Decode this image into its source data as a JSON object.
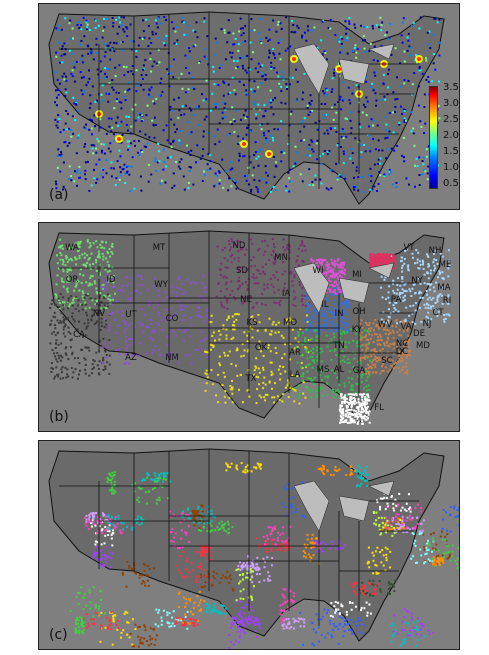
{
  "panels": {
    "a": {
      "label": "(a)"
    },
    "b": {
      "label": "(b)"
    },
    "c": {
      "label": "(c)"
    }
  },
  "colorbar": {
    "ticks": [
      "3.5",
      "3.0",
      "2.5",
      "2.0",
      "1.5",
      "1.0",
      "0.5"
    ],
    "colormap": [
      "#00008f",
      "#0000ff",
      "#0080ff",
      "#00ffff",
      "#80ff80",
      "#ffff00",
      "#ff8000",
      "#ff0000",
      "#800000"
    ]
  },
  "state_labels": [
    "WA",
    "OR",
    "ID",
    "MT",
    "WY",
    "NV",
    "UT",
    "CO",
    "CA",
    "AZ",
    "NM",
    "ND",
    "SD",
    "NE",
    "KS",
    "OK",
    "TX",
    "MN",
    "IA",
    "MO",
    "AR",
    "LA",
    "WI",
    "IL",
    "MI",
    "IN",
    "OH",
    "KY",
    "TN",
    "MS",
    "AL",
    "GA",
    "FL",
    "SC",
    "NC",
    "VA",
    "WV",
    "PA",
    "NY",
    "VT",
    "NH",
    "ME",
    "MA",
    "RI",
    "CT",
    "NJ",
    "DE",
    "MD",
    "DC"
  ],
  "region_colors": {
    "northwest": "#6fe06f",
    "southwest": "#8a4fd6",
    "california_nevada": "#3a3a3a",
    "plains": "#7a2f6f",
    "south_central": "#e8e01a",
    "midwest_blue": "#3a6fd6",
    "southeast": "#2fbf4a",
    "carolinas": "#c8804a",
    "northeast": "#a8d8ff",
    "michigan": "#e050d8",
    "ny_pa": "#e03060",
    "florida": "#ffffff"
  }
}
